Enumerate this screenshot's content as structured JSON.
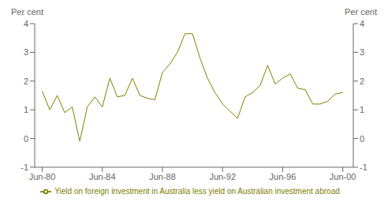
{
  "chart_data": {
    "type": "line",
    "ylabel": "Per cent",
    "y2label": "Per cent",
    "x": [
      1980.5,
      1981.0,
      1981.5,
      1982.0,
      1982.5,
      1983.0,
      1983.5,
      1984.0,
      1984.5,
      1985.0,
      1985.5,
      1986.0,
      1986.5,
      1987.0,
      1987.5,
      1988.0,
      1988.5,
      1989.0,
      1989.5,
      1990.0,
      1990.5,
      1991.0,
      1991.5,
      1992.0,
      1992.5,
      1993.0,
      1993.5,
      1994.0,
      1994.5,
      1995.0,
      1995.5,
      1996.0,
      1996.5,
      1997.0,
      1997.5,
      1998.0,
      1998.5,
      1999.0,
      1999.5,
      2000.0,
      2000.5
    ],
    "series": [
      {
        "name": "Yield on foreign investment in Australia less yield on Australian investment abroad",
        "color": "#808000",
        "values": [
          1.65,
          1.0,
          1.5,
          0.9,
          1.1,
          -0.1,
          1.1,
          1.45,
          1.1,
          2.1,
          1.45,
          1.5,
          2.1,
          1.5,
          1.4,
          1.35,
          2.3,
          2.6,
          3.0,
          3.65,
          3.65,
          2.8,
          2.1,
          1.6,
          1.2,
          0.95,
          0.7,
          1.45,
          1.6,
          1.85,
          2.55,
          1.9,
          2.1,
          2.25,
          1.75,
          1.7,
          1.2,
          1.2,
          1.3,
          1.55,
          1.6
        ]
      }
    ],
    "xlim": [
      1980.0,
      2001.2
    ],
    "xticks": [
      {
        "value": 1980.5,
        "label": "Jun-80"
      },
      {
        "value": 1984.5,
        "label": "Jun-84"
      },
      {
        "value": 1988.5,
        "label": "Jun-88"
      },
      {
        "value": 1992.5,
        "label": "Jun-92"
      },
      {
        "value": 1996.5,
        "label": "Jun-96"
      },
      {
        "value": 2000.5,
        "label": "Jun-00"
      }
    ],
    "ylim": [
      -1,
      4
    ],
    "yticks": [
      -1,
      0,
      1,
      2,
      3,
      4
    ],
    "y2lim": [
      -1,
      4
    ],
    "y2ticks": [
      -1,
      0,
      1,
      2,
      3,
      4
    ],
    "grid": false,
    "legend": "bottom"
  }
}
